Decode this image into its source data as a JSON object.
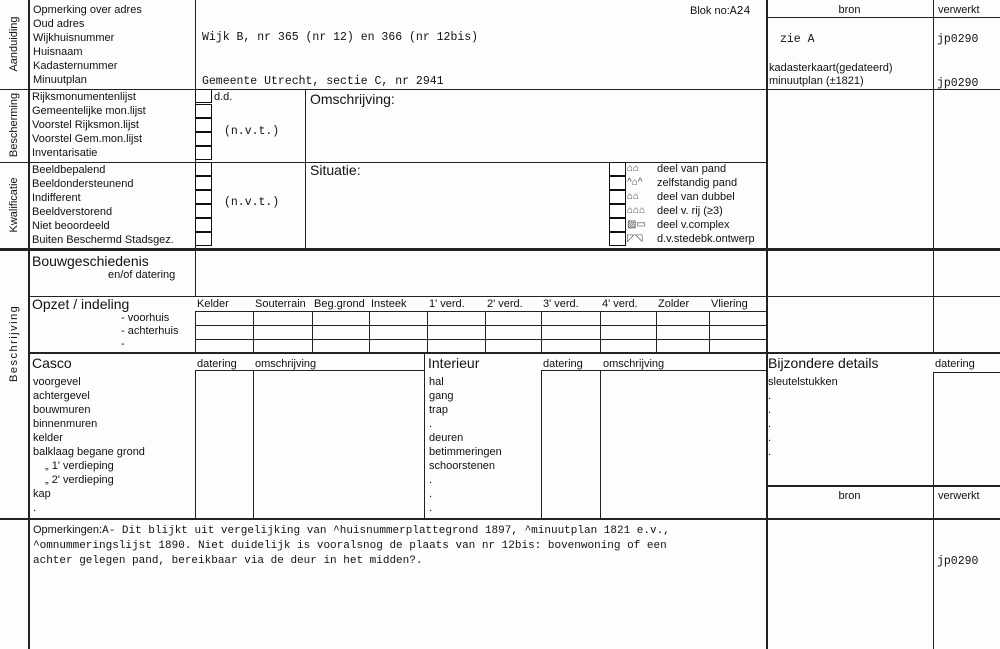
{
  "blok": {
    "label": "Blok no:",
    "value": "A24"
  },
  "aanduiding": {
    "section": "Aanduiding",
    "fields": [
      "Opmerking over adres",
      "Oud adres",
      "Wijkhuisnummer",
      "Huisnaam",
      "Kadasternummer",
      "Minuutplan"
    ],
    "wijkhuisnummer_value": "Wijk B, nr 365 (nr 12) en 366 (nr 12bis)",
    "minuutplan_value": "Gemeente Utrecht, sectie C, nr 2941"
  },
  "sources_top": {
    "bron_header": "bron",
    "verwerkt_header": "verwerkt",
    "rows": [
      {
        "bron": "zie A",
        "verwerkt": "jp0290"
      },
      {
        "bron": "kadasterkaart(gedateerd)",
        "bron2": "minuutplan (±1821)",
        "verwerkt": "jp0290"
      }
    ]
  },
  "bescherming": {
    "section": "Bescherming",
    "items": [
      "Rijksmonumentenlijst",
      "Gemeentelijke mon.lijst",
      "Voorstel Rijksmon.lijst",
      "Voorstel Gem.mon.lijst",
      "Inventarisatie"
    ],
    "dd_label": "d.d.",
    "value": "(n.v.t.)",
    "omschrijving_label": "Omschrijving:"
  },
  "kwalificatie": {
    "section": "Kwalificatie",
    "items": [
      "Beeldbepalend",
      "Beeldondersteunend",
      "Indifferent",
      "Beeldverstorend",
      "Niet beoordeeld",
      "Buiten Beschermd Stadsgez."
    ],
    "value": "(n.v.t.)",
    "situatie_label": "Situatie:",
    "situatie_options": [
      "deel van pand",
      "zelfstandig pand",
      "deel van dubbel",
      "deel v. rij  (≥3)",
      "deel v.complex",
      "d.v.stedebk.ontwerp"
    ]
  },
  "beschrijving": {
    "section": "Beschrijving",
    "bouwgeschiedenis": {
      "title": "Bouwgeschiedenis",
      "subtitle": "en/of datering"
    },
    "opzet": {
      "title": "Opzet / indeling",
      "rows": [
        "- voorhuis",
        "- achterhuis",
        "-"
      ],
      "columns": [
        "Kelder",
        "Souterrain",
        "Beg.grond",
        "Insteek",
        "1' verd.",
        "2' verd.",
        "3' verd.",
        "4' verd.",
        "Zolder",
        "Vliering"
      ]
    },
    "casco": {
      "title": "Casco",
      "datering": "datering",
      "omschrijving": "omschrijving",
      "items": [
        "voorgevel",
        "achtergevel",
        "bouwmuren",
        "binnenmuren",
        "kelder",
        "balklaag begane grond",
        "„      1' verdieping",
        "„      2' verdieping",
        "kap",
        "."
      ]
    },
    "interieur": {
      "title": "Interieur",
      "datering": "datering",
      "omschrijving": "omschrijving",
      "items": [
        "hal",
        "gang",
        "trap",
        ".",
        "deuren",
        "betimmeringen",
        "schoorstenen",
        ".",
        ".",
        "."
      ]
    },
    "bijzondere": {
      "title": "Bijzondere details",
      "datering": "datering",
      "items": [
        "sleutelstukken",
        ".",
        ".",
        ".",
        ".",
        ".",
        "."
      ],
      "bron_header": "bron",
      "verwerkt_header": "verwerkt"
    }
  },
  "opmerkingen": {
    "label": "Opmerkingen:",
    "lines": [
      "A- Dit blijkt uit vergelijking van ^huisnummerplattegrond 1897, ^minuutplan 1821 e.v.,",
      "^omnummeringslijst 1890. Niet duidelijk is vooralsnog de plaats van nr 12bis: bovenwoning of een",
      "achter gelegen pand, bereikbaar via de deur in het midden?."
    ],
    "verwerkt": "jp0290"
  }
}
